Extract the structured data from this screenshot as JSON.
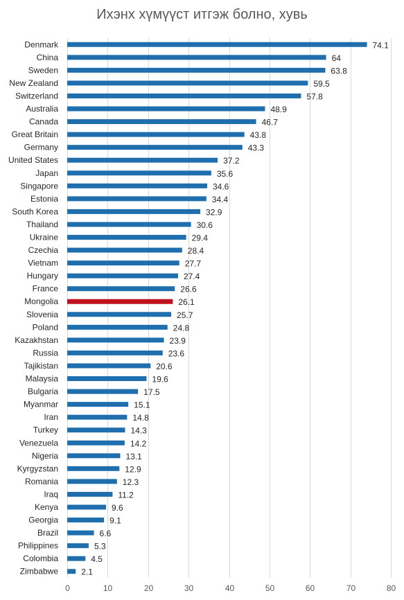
{
  "chart_data": {
    "type": "bar",
    "orientation": "horizontal",
    "title": "Ихэнх хүмүүст итгэж болно, хувь",
    "xlabel": "",
    "ylabel": "",
    "xlim": [
      0,
      80
    ],
    "xticks": [
      0,
      10,
      20,
      30,
      40,
      50,
      60,
      70,
      80
    ],
    "grid": true,
    "legend": "none",
    "colors": {
      "default": "#1f6fae",
      "highlight": "#c0111f"
    },
    "highlight": "Mongolia",
    "categories": [
      "Denmark",
      "China",
      "Sweden",
      "New Zealand",
      "Switzerland",
      "Australia",
      "Canada",
      "Great Britain",
      "Germany",
      "United States",
      "Japan",
      "Singapore",
      "Estonia",
      "South Korea",
      "Thailand",
      "Ukraine",
      "Czechia",
      "Vietnam",
      "Hungary",
      "France",
      "Mongolia",
      "Slovenia",
      "Poland",
      "Kazakhstan",
      "Russia",
      "Tajikistan",
      "Malaysia",
      "Bulgaria",
      "Myanmar",
      "Iran",
      "Turkey",
      "Venezuela",
      "Nigeria",
      "Kyrgyzstan",
      "Romania",
      "Iraq",
      "Kenya",
      "Georgia",
      "Brazil",
      "Philippines",
      "Colombia",
      "Zimbabwe"
    ],
    "values": [
      74.1,
      64,
      63.8,
      59.5,
      57.8,
      48.9,
      46.7,
      43.8,
      43.3,
      37.2,
      35.6,
      34.6,
      34.4,
      32.9,
      30.6,
      29.4,
      28.4,
      27.7,
      27.4,
      26.6,
      26.1,
      25.7,
      24.8,
      23.9,
      23.6,
      20.6,
      19.6,
      17.5,
      15.1,
      14.8,
      14.3,
      14.2,
      13.1,
      12.9,
      12.3,
      11.2,
      9.6,
      9.1,
      6.6,
      5.3,
      4.5,
      2.1
    ]
  }
}
